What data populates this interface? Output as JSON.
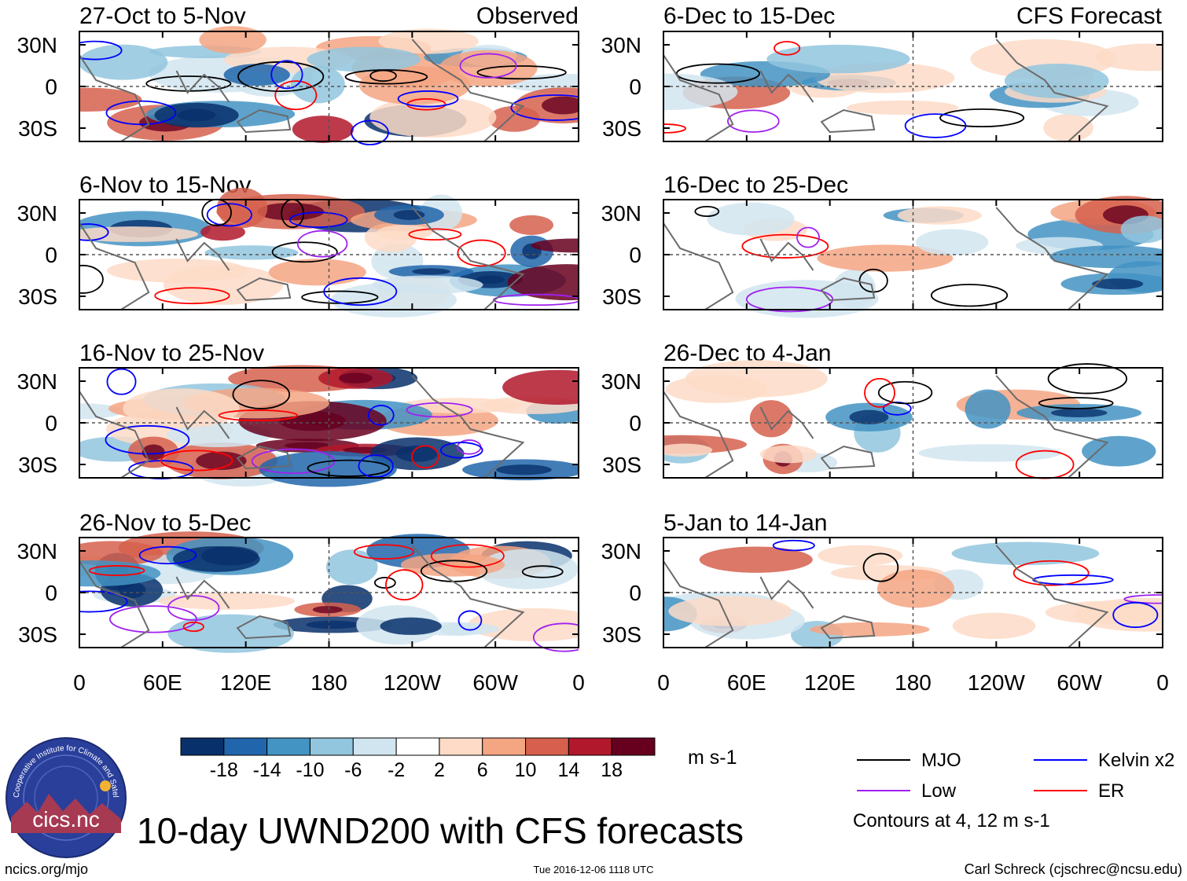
{
  "title": "10-day UWND200 with CFS forecasts",
  "observed_label": "Observed",
  "forecast_label": "CFS Forecast",
  "footer": {
    "left": "ncics.org/mjo",
    "center": "Tue 2016-12-06 1118 UTC",
    "right": "Carl Schreck (cjschrec@ncsu.edu)"
  },
  "logo": {
    "ring_text": "Cooperative Institute for Climate and Satellites",
    "name": "cics.nc"
  },
  "chart_data": {
    "type": "heatmap",
    "variable": "200-hPa zonal wind anomaly",
    "units": "m s-1",
    "lat_ticks": [
      "30N",
      "0",
      "30S"
    ],
    "lon_ticks": [
      "0",
      "60E",
      "120E",
      "180",
      "120W",
      "60W",
      "0"
    ],
    "panels": [
      {
        "period": "27-Oct to 5-Nov",
        "source": "Observed"
      },
      {
        "period": "6-Nov to 15-Nov",
        "source": "Observed"
      },
      {
        "period": "16-Nov to 25-Nov",
        "source": "Observed"
      },
      {
        "period": "26-Nov to 5-Dec",
        "source": "Observed"
      },
      {
        "period": "6-Dec to 15-Dec",
        "source": "CFS Forecast"
      },
      {
        "period": "16-Dec to 25-Dec",
        "source": "CFS Forecast"
      },
      {
        "period": "26-Dec to 4-Jan",
        "source": "CFS Forecast"
      },
      {
        "period": "5-Jan to 14-Jan",
        "source": "CFS Forecast"
      }
    ],
    "colorbar": {
      "levels": [
        -18,
        -14,
        -10,
        -6,
        -2,
        2,
        6,
        10,
        14,
        18
      ],
      "colors": [
        "#08306b",
        "#2166ac",
        "#4393c3",
        "#92c5de",
        "#d1e5f0",
        "#ffffff",
        "#fddbc7",
        "#f4a582",
        "#d6604d",
        "#b2182b",
        "#67001f"
      ],
      "units": "m s-1"
    },
    "contour_legend": [
      {
        "label": "MJO",
        "color": "#000000"
      },
      {
        "label": "Kelvin x2",
        "color": "#0000ff"
      },
      {
        "label": "Low",
        "color": "#a020f0"
      },
      {
        "label": "ER",
        "color": "#ff0000"
      }
    ],
    "contour_note": "Contours at 4, 12 m s-1"
  }
}
